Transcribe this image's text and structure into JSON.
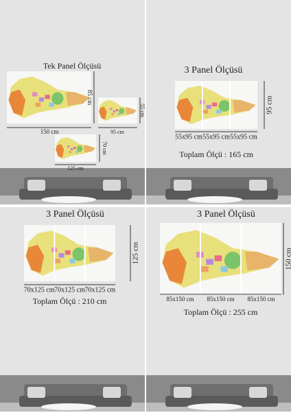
{
  "quadrants": [
    {
      "title": "Tek Panel Ölçüsü",
      "labels": [
        "150 cm",
        "85 cm",
        "95 cm",
        "55 cm",
        "125 cm",
        "70 cm"
      ]
    },
    {
      "title": "3 Panel Ölçüsü",
      "height": "95 cm",
      "panels": [
        "55x95 cm",
        "55x95 cm",
        "55x95 cm"
      ],
      "total": "Toplam Ölçü : 165 cm"
    },
    {
      "title": "3 Panel Ölçüsü",
      "height": "125 cm",
      "panels": [
        "70x125 cm",
        "70x125 cm",
        "70x125 cm"
      ],
      "total": "Toplam Ölçü : 210 cm"
    },
    {
      "title": "3 Panel Ölçüsü",
      "height": "150 cm",
      "panels": [
        "85x150 cm",
        "85x150 cm",
        "85x150 cm"
      ],
      "total": "Toplam Ölçü : 255 cm"
    }
  ]
}
